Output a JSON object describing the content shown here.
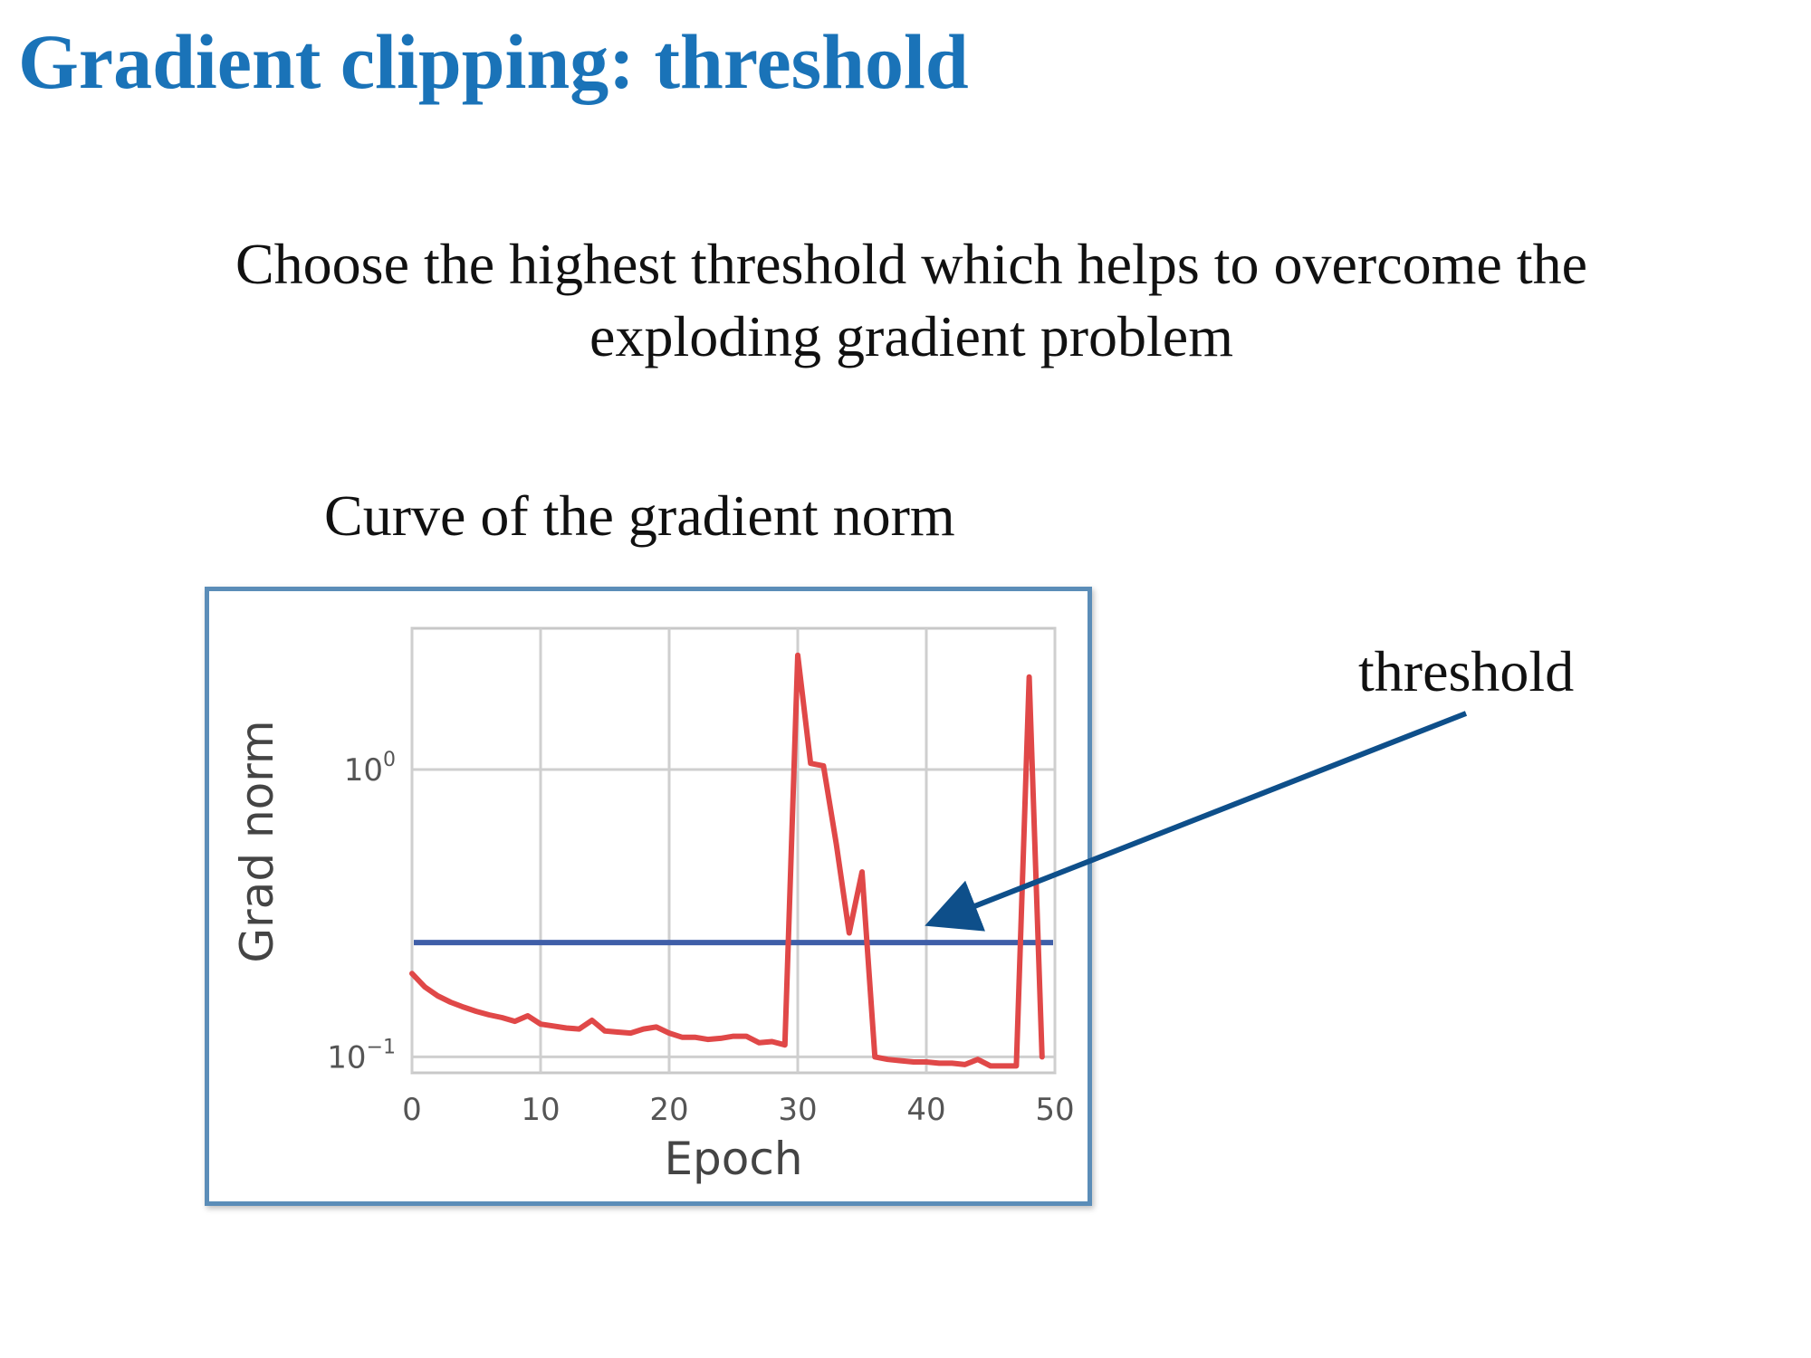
{
  "slide": {
    "title": "Gradient clipping: threshold",
    "subtitle_lines": [
      "Choose the highest threshold which helps to overcome the",
      "exploding gradient problem"
    ],
    "chart_caption": "Curve of the gradient norm",
    "annotation": "threshold"
  },
  "colors": {
    "title": "#1a73b8",
    "frame": "#5b8db8",
    "series": "#e04848",
    "threshold_line": "#3f5ea8",
    "arrow": "#0e4f8a"
  },
  "chart_data": {
    "type": "line",
    "title": "Curve of the gradient norm",
    "xlabel": "Epoch",
    "ylabel": "Grad norm",
    "xlim": [
      0,
      50
    ],
    "ylim": [
      0.088,
      3.1
    ],
    "yscale": "log",
    "grid": true,
    "x_ticks": [
      0,
      10,
      20,
      30,
      40,
      50
    ],
    "y_ticks": [
      {
        "value": 0.1,
        "base": "10",
        "exp": "−1"
      },
      {
        "value": 1,
        "base": "10",
        "exp": "0"
      }
    ],
    "series": [
      {
        "values_x": [
          0,
          1,
          2,
          3,
          4,
          5,
          6,
          7,
          8,
          9,
          10,
          11,
          12,
          13,
          14,
          15,
          16,
          17,
          18,
          19,
          20,
          21,
          22,
          23,
          24,
          25,
          26,
          27,
          28,
          29,
          30,
          31,
          32,
          33,
          34,
          35,
          36,
          37,
          38,
          39,
          40,
          41,
          42,
          43,
          44,
          45,
          46,
          47,
          48,
          49
        ],
        "values_y": [
          0.195,
          0.175,
          0.163,
          0.155,
          0.149,
          0.144,
          0.14,
          0.137,
          0.133,
          0.139,
          0.13,
          0.128,
          0.126,
          0.125,
          0.134,
          0.123,
          0.122,
          0.121,
          0.125,
          0.127,
          0.121,
          0.117,
          0.117,
          0.115,
          0.116,
          0.118,
          0.118,
          0.112,
          0.113,
          0.11,
          2.5,
          1.05,
          1.03,
          0.55,
          0.27,
          0.44,
          0.1,
          0.098,
          0.097,
          0.096,
          0.096,
          0.095,
          0.095,
          0.094,
          0.098,
          0.093,
          0.093,
          0.093,
          2.1,
          0.1
        ]
      }
    ],
    "threshold": 0.25
  }
}
